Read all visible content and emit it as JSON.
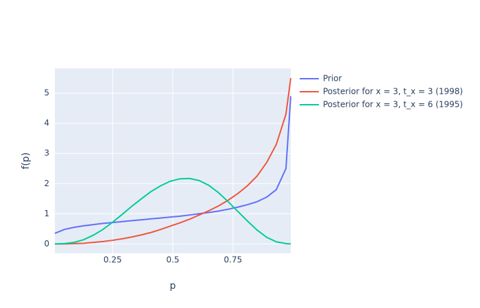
{
  "chart_data": {
    "type": "line",
    "x_label": "p",
    "y_label": "f(p)",
    "x": [
      0.01,
      0.05,
      0.09,
      0.13,
      0.17,
      0.21,
      0.25,
      0.29,
      0.33,
      0.37,
      0.41,
      0.45,
      0.49,
      0.53,
      0.57,
      0.61,
      0.65,
      0.69,
      0.73,
      0.77,
      0.81,
      0.85,
      0.89,
      0.93,
      0.97,
      0.99
    ],
    "series": [
      {
        "name": "Prior",
        "color": "#636efa",
        "values": [
          0.35,
          0.48,
          0.55,
          0.6,
          0.64,
          0.68,
          0.71,
          0.74,
          0.77,
          0.8,
          0.83,
          0.86,
          0.89,
          0.92,
          0.96,
          1.0,
          1.04,
          1.09,
          1.15,
          1.22,
          1.3,
          1.4,
          1.55,
          1.8,
          2.5,
          4.9
        ]
      },
      {
        "name": "Posterior for x = 3, t_x = 3 (1998)",
        "color": "#EF553B",
        "values": [
          0,
          0,
          0.01,
          0.02,
          0.05,
          0.08,
          0.12,
          0.17,
          0.23,
          0.3,
          0.38,
          0.48,
          0.59,
          0.7,
          0.82,
          0.96,
          1.1,
          1.26,
          1.45,
          1.67,
          1.93,
          2.25,
          2.7,
          3.3,
          4.3,
          5.5
        ]
      },
      {
        "name": "Posterior for x = 3, t_x = 6 (1995)",
        "color": "#00cc96",
        "values": [
          0,
          0.01,
          0.05,
          0.14,
          0.29,
          0.48,
          0.72,
          0.98,
          1.25,
          1.5,
          1.74,
          1.93,
          2.08,
          2.16,
          2.17,
          2.1,
          1.94,
          1.7,
          1.4,
          1.08,
          0.76,
          0.46,
          0.22,
          0.07,
          0.01,
          0
        ]
      }
    ],
    "xlim": [
      0.01,
      0.99
    ],
    "ylim": [
      -0.31,
      5.82
    ],
    "xticks": [
      0.25,
      0.5,
      0.75
    ],
    "yticks": [
      0,
      1,
      2,
      3,
      4,
      5
    ],
    "grid": true,
    "legend": "outside-right"
  }
}
